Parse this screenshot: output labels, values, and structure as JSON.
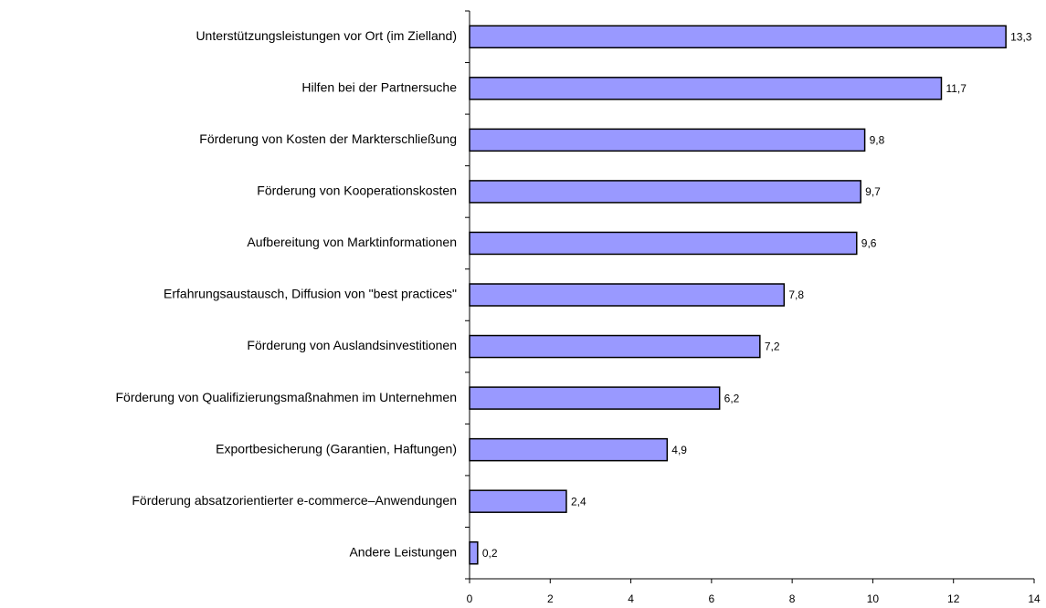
{
  "chart_data": {
    "type": "bar",
    "orientation": "horizontal",
    "categories": [
      "Unterstützungsleistungen vor Ort (im Zielland)",
      "Hilfen bei der Partnersuche",
      "Förderung von Kosten der Markterschließung",
      "Förderung von Kooperationskosten",
      "Aufbereitung von Marktinformationen",
      "Erfahrungsaustausch, Diffusion von \"best practices\"",
      "Förderung von Auslandsinvestitionen",
      "Förderung von Qualifizierungsmaßnahmen im Unternehmen",
      "Exportbesicherung (Garantien, Haftungen)",
      "Förderung absatzorientierter e-commerce–Anwendungen",
      "Andere Leistungen"
    ],
    "values": [
      13.3,
      11.7,
      9.8,
      9.7,
      9.6,
      7.8,
      7.2,
      6.2,
      4.9,
      2.4,
      0.2
    ],
    "value_labels": [
      "13,3",
      "11,7",
      "9,8",
      "9,7",
      "9,6",
      "7,8",
      "7,2",
      "6,2",
      "4,9",
      "2,4",
      "0,2"
    ],
    "color": "#9999ff",
    "xlim": [
      0,
      14
    ],
    "xticks": [
      0,
      2,
      4,
      6,
      8,
      10,
      12,
      14
    ]
  }
}
